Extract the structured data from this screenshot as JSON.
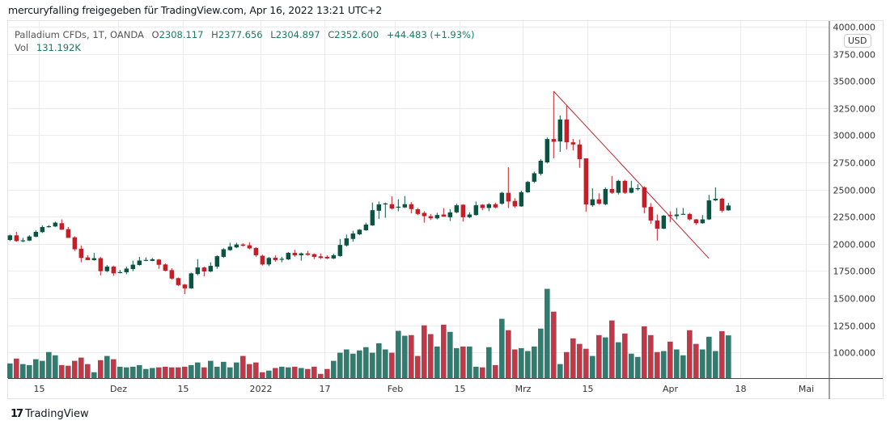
{
  "header": {
    "title": "mercuryfalling freigegeben für TradingView.com, Apr 16, 2022 13:21 UTC+2"
  },
  "legend": {
    "symbol": "Palladium CFDs, 1T, OANDA",
    "open_label": "O",
    "open": "2308.117",
    "high_label": "H",
    "high": "2377.656",
    "low_label": "L",
    "low": "2304.897",
    "close_label": "C",
    "close": "2352.600",
    "change": "+44.483 (+1.93%)",
    "vol_label": "Vol",
    "vol": "131.192K"
  },
  "currency_badge": "USD",
  "footer": {
    "brand": "TradingView",
    "logo_text": "TV"
  },
  "colors": {
    "up": "#0e5242",
    "down": "#c0202a",
    "vol_up": "#2e7d6f",
    "vol_down": "#bf3a48",
    "trendline": "#c0202a",
    "grid": "#ececec",
    "axis": "#444444"
  },
  "chart_data": {
    "type": "candlestick",
    "price_axis": {
      "min": 1000,
      "max": 4000,
      "step": 250,
      "ticks": [
        "1000.000",
        "1250.000",
        "1500.000",
        "1750.000",
        "2000.000",
        "2250.000",
        "2500.000",
        "2750.000",
        "3000.000",
        "3250.000",
        "3500.000",
        "3750.000",
        "4000.000"
      ]
    },
    "time_axis": [
      {
        "label": "15",
        "index": 4.5
      },
      {
        "label": "Dez",
        "index": 16.7
      },
      {
        "label": "15",
        "index": 26.7
      },
      {
        "label": "2022",
        "index": 38.7
      },
      {
        "label": "17",
        "index": 48.6
      },
      {
        "label": "Feb",
        "index": 59.5
      },
      {
        "label": "15",
        "index": 69.4
      },
      {
        "label": "Mrz",
        "index": 79.2
      },
      {
        "label": "15",
        "index": 89.2
      },
      {
        "label": "Apr",
        "index": 101.9
      },
      {
        "label": "18",
        "index": 112.8
      },
      {
        "label": "Mai",
        "index": 122.9
      }
    ],
    "ohlc": [
      [
        2035,
        2085,
        2025,
        2078
      ],
      [
        2078,
        2110,
        2020,
        2025
      ],
      [
        2030,
        2055,
        2015,
        2032
      ],
      [
        2030,
        2080,
        2025,
        2068
      ],
      [
        2066,
        2125,
        2060,
        2110
      ],
      [
        2108,
        2170,
        2100,
        2155
      ],
      [
        2158,
        2172,
        2150,
        2162
      ],
      [
        2160,
        2205,
        2155,
        2195
      ],
      [
        2190,
        2225,
        2130,
        2130
      ],
      [
        2135,
        2155,
        2055,
        2055
      ],
      [
        2060,
        2070,
        1935,
        1950
      ],
      [
        1955,
        1985,
        1830,
        1870
      ],
      [
        1875,
        1895,
        1850,
        1850
      ],
      [
        1850,
        1915,
        1845,
        1868
      ],
      [
        1868,
        1880,
        1710,
        1748
      ],
      [
        1748,
        1805,
        1740,
        1790
      ],
      [
        1790,
        1800,
        1705,
        1728
      ],
      [
        1738,
        1760,
        1728,
        1740
      ],
      [
        1738,
        1790,
        1720,
        1772
      ],
      [
        1768,
        1845,
        1748,
        1808
      ],
      [
        1805,
        1880,
        1800,
        1846
      ],
      [
        1850,
        1875,
        1840,
        1852
      ],
      [
        1843,
        1870,
        1840,
        1858
      ],
      [
        1855,
        1860,
        1770,
        1807
      ],
      [
        1810,
        1820,
        1745,
        1753
      ],
      [
        1758,
        1775,
        1670,
        1680
      ],
      [
        1684,
        1690,
        1610,
        1620
      ],
      [
        1625,
        1630,
        1537,
        1590
      ],
      [
        1590,
        1735,
        1585,
        1728
      ],
      [
        1722,
        1860,
        1710,
        1782
      ],
      [
        1782,
        1790,
        1700,
        1745
      ],
      [
        1745,
        1830,
        1740,
        1797
      ],
      [
        1790,
        1895,
        1770,
        1886
      ],
      [
        1880,
        1960,
        1870,
        1950
      ],
      [
        1942,
        2010,
        1935,
        1974
      ],
      [
        1967,
        2010,
        1960,
        1994
      ],
      [
        1994,
        2005,
        1975,
        1982
      ],
      [
        1987,
        2015,
        1950,
        1958
      ],
      [
        1962,
        1970,
        1880,
        1895
      ],
      [
        1890,
        1900,
        1800,
        1810
      ],
      [
        1810,
        1880,
        1795,
        1870
      ],
      [
        1872,
        1895,
        1835,
        1850
      ],
      [
        1858,
        1880,
        1830,
        1862
      ],
      [
        1857,
        1925,
        1850,
        1917
      ],
      [
        1917,
        1945,
        1880,
        1894
      ],
      [
        1895,
        1920,
        1845,
        1912
      ],
      [
        1912,
        1935,
        1890,
        1898
      ],
      [
        1905,
        1912,
        1860,
        1880
      ],
      [
        1885,
        1910,
        1860,
        1870
      ],
      [
        1880,
        1895,
        1860,
        1865
      ],
      [
        1865,
        1910,
        1860,
        1895
      ],
      [
        1888,
        2045,
        1880,
        1990
      ],
      [
        1985,
        2085,
        1975,
        2050
      ],
      [
        2045,
        2120,
        2020,
        2095
      ],
      [
        2088,
        2135,
        2080,
        2130
      ],
      [
        2125,
        2195,
        2120,
        2177
      ],
      [
        2170,
        2380,
        2165,
        2310
      ],
      [
        2305,
        2390,
        2230,
        2363
      ],
      [
        2365,
        2380,
        2240,
        2372
      ],
      [
        2365,
        2437,
        2315,
        2325
      ],
      [
        2338,
        2410,
        2300,
        2342
      ],
      [
        2335,
        2440,
        2330,
        2365
      ],
      [
        2365,
        2385,
        2280,
        2320
      ],
      [
        2318,
        2330,
        2265,
        2275
      ],
      [
        2285,
        2300,
        2195,
        2255
      ],
      [
        2255,
        2275,
        2220,
        2235
      ],
      [
        2235,
        2285,
        2225,
        2265
      ],
      [
        2270,
        2330,
        2250,
        2250
      ],
      [
        2245,
        2320,
        2210,
        2290
      ],
      [
        2290,
        2370,
        2280,
        2355
      ],
      [
        2360,
        2365,
        2205,
        2245
      ],
      [
        2245,
        2290,
        2235,
        2270
      ],
      [
        2265,
        2390,
        2260,
        2355
      ],
      [
        2360,
        2365,
        2310,
        2330
      ],
      [
        2330,
        2375,
        2300,
        2365
      ],
      [
        2365,
        2380,
        2325,
        2335
      ],
      [
        2370,
        2480,
        2360,
        2470
      ],
      [
        2470,
        2705,
        2330,
        2390
      ],
      [
        2395,
        2420,
        2330,
        2345
      ],
      [
        2345,
        2490,
        2340,
        2475
      ],
      [
        2475,
        2580,
        2470,
        2570
      ],
      [
        2572,
        2665,
        2560,
        2650
      ],
      [
        2645,
        2780,
        2630,
        2765
      ],
      [
        2750,
        2980,
        2740,
        2965
      ],
      [
        2965,
        3405,
        2787,
        2940
      ],
      [
        2943,
        3182,
        2847,
        3145
      ],
      [
        3145,
        3278,
        2870,
        2935
      ],
      [
        2935,
        2965,
        2860,
        2915
      ],
      [
        2915,
        2960,
        2700,
        2780
      ],
      [
        2787,
        2787,
        2296,
        2363
      ],
      [
        2355,
        2510,
        2340,
        2410
      ],
      [
        2410,
        2465,
        2360,
        2370
      ],
      [
        2365,
        2520,
        2355,
        2505
      ],
      [
        2505,
        2624,
        2460,
        2470
      ],
      [
        2470,
        2590,
        2455,
        2580
      ],
      [
        2580,
        2590,
        2460,
        2470
      ],
      [
        2470,
        2580,
        2465,
        2515
      ],
      [
        2508,
        2550,
        2490,
        2512
      ],
      [
        2520,
        2530,
        2280,
        2335
      ],
      [
        2340,
        2375,
        2185,
        2215
      ],
      [
        2215,
        2270,
        2030,
        2140
      ],
      [
        2140,
        2265,
        2135,
        2260
      ],
      [
        2265,
        2300,
        2200,
        2255
      ],
      [
        2255,
        2330,
        2225,
        2270
      ],
      [
        2272,
        2330,
        2270,
        2276
      ],
      [
        2275,
        2285,
        2215,
        2225
      ],
      [
        2225,
        2230,
        2175,
        2190
      ],
      [
        2190,
        2265,
        2185,
        2225
      ],
      [
        2225,
        2450,
        2220,
        2400
      ],
      [
        2400,
        2520,
        2395,
        2415
      ],
      [
        2415,
        2425,
        2290,
        2305
      ],
      [
        2308.117,
        2377.656,
        2304.897,
        2352.6
      ]
    ],
    "volume_k": [
      45,
      60,
      43,
      40,
      58,
      53,
      80,
      70,
      40,
      38,
      53,
      63,
      43,
      18,
      55,
      68,
      58,
      35,
      33,
      35,
      40,
      28,
      31,
      33,
      35,
      33,
      33,
      35,
      40,
      48,
      33,
      53,
      35,
      50,
      33,
      48,
      68,
      43,
      48,
      18,
      23,
      31,
      35,
      33,
      35,
      31,
      28,
      35,
      13,
      28,
      53,
      78,
      88,
      75,
      85,
      95,
      78,
      107,
      88,
      78,
      145,
      130,
      132,
      68,
      162,
      135,
      97,
      164,
      142,
      92,
      97,
      97,
      35,
      33,
      95,
      40,
      182,
      147,
      88,
      92,
      83,
      97,
      152,
      274,
      204,
      43,
      80,
      122,
      105,
      90,
      68,
      132,
      125,
      177,
      110,
      137,
      75,
      65,
      159,
      132,
      80,
      83,
      112,
      88,
      70,
      147,
      105,
      88,
      127,
      83,
      144,
      131.192
    ],
    "trendline": {
      "from": {
        "index": 84,
        "price": 3405
      },
      "to": {
        "index": 108,
        "price": 1865
      }
    }
  }
}
